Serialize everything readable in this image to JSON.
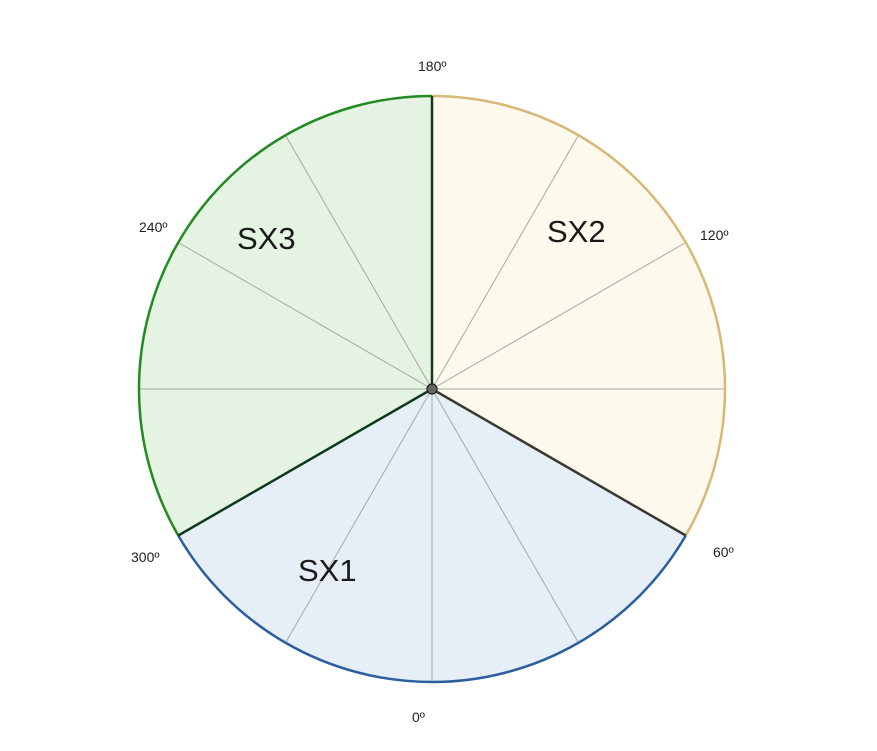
{
  "diagram": {
    "sectors": [
      {
        "label": "SX1",
        "start_deg": 300,
        "end_deg": 60,
        "fill": "#e6eef8",
        "arc_color": "#2c5f9e"
      },
      {
        "label": "SX2",
        "start_deg": 60,
        "end_deg": 180,
        "fill": "#fdf9ec",
        "arc_color": "#d8b878"
      },
      {
        "label": "SX3",
        "start_deg": 180,
        "end_deg": 300,
        "fill": "#e5f3e2",
        "arc_color": "#228b22"
      }
    ],
    "degree_labels": [
      {
        "text": "0º",
        "deg": 0
      },
      {
        "text": "60º",
        "deg": 60
      },
      {
        "text": "120º",
        "deg": 120
      },
      {
        "text": "180º",
        "deg": 180
      },
      {
        "text": "240º",
        "deg": 240
      },
      {
        "text": "300º",
        "deg": 300
      }
    ],
    "spoke_step_deg": 30,
    "boundaries": [
      {
        "deg": 60,
        "color": "#3a3a32"
      },
      {
        "deg": 180,
        "color": "#163a16"
      },
      {
        "deg": 300,
        "color": "#0d3a1a"
      }
    ],
    "center_dot_color": "#666666"
  }
}
